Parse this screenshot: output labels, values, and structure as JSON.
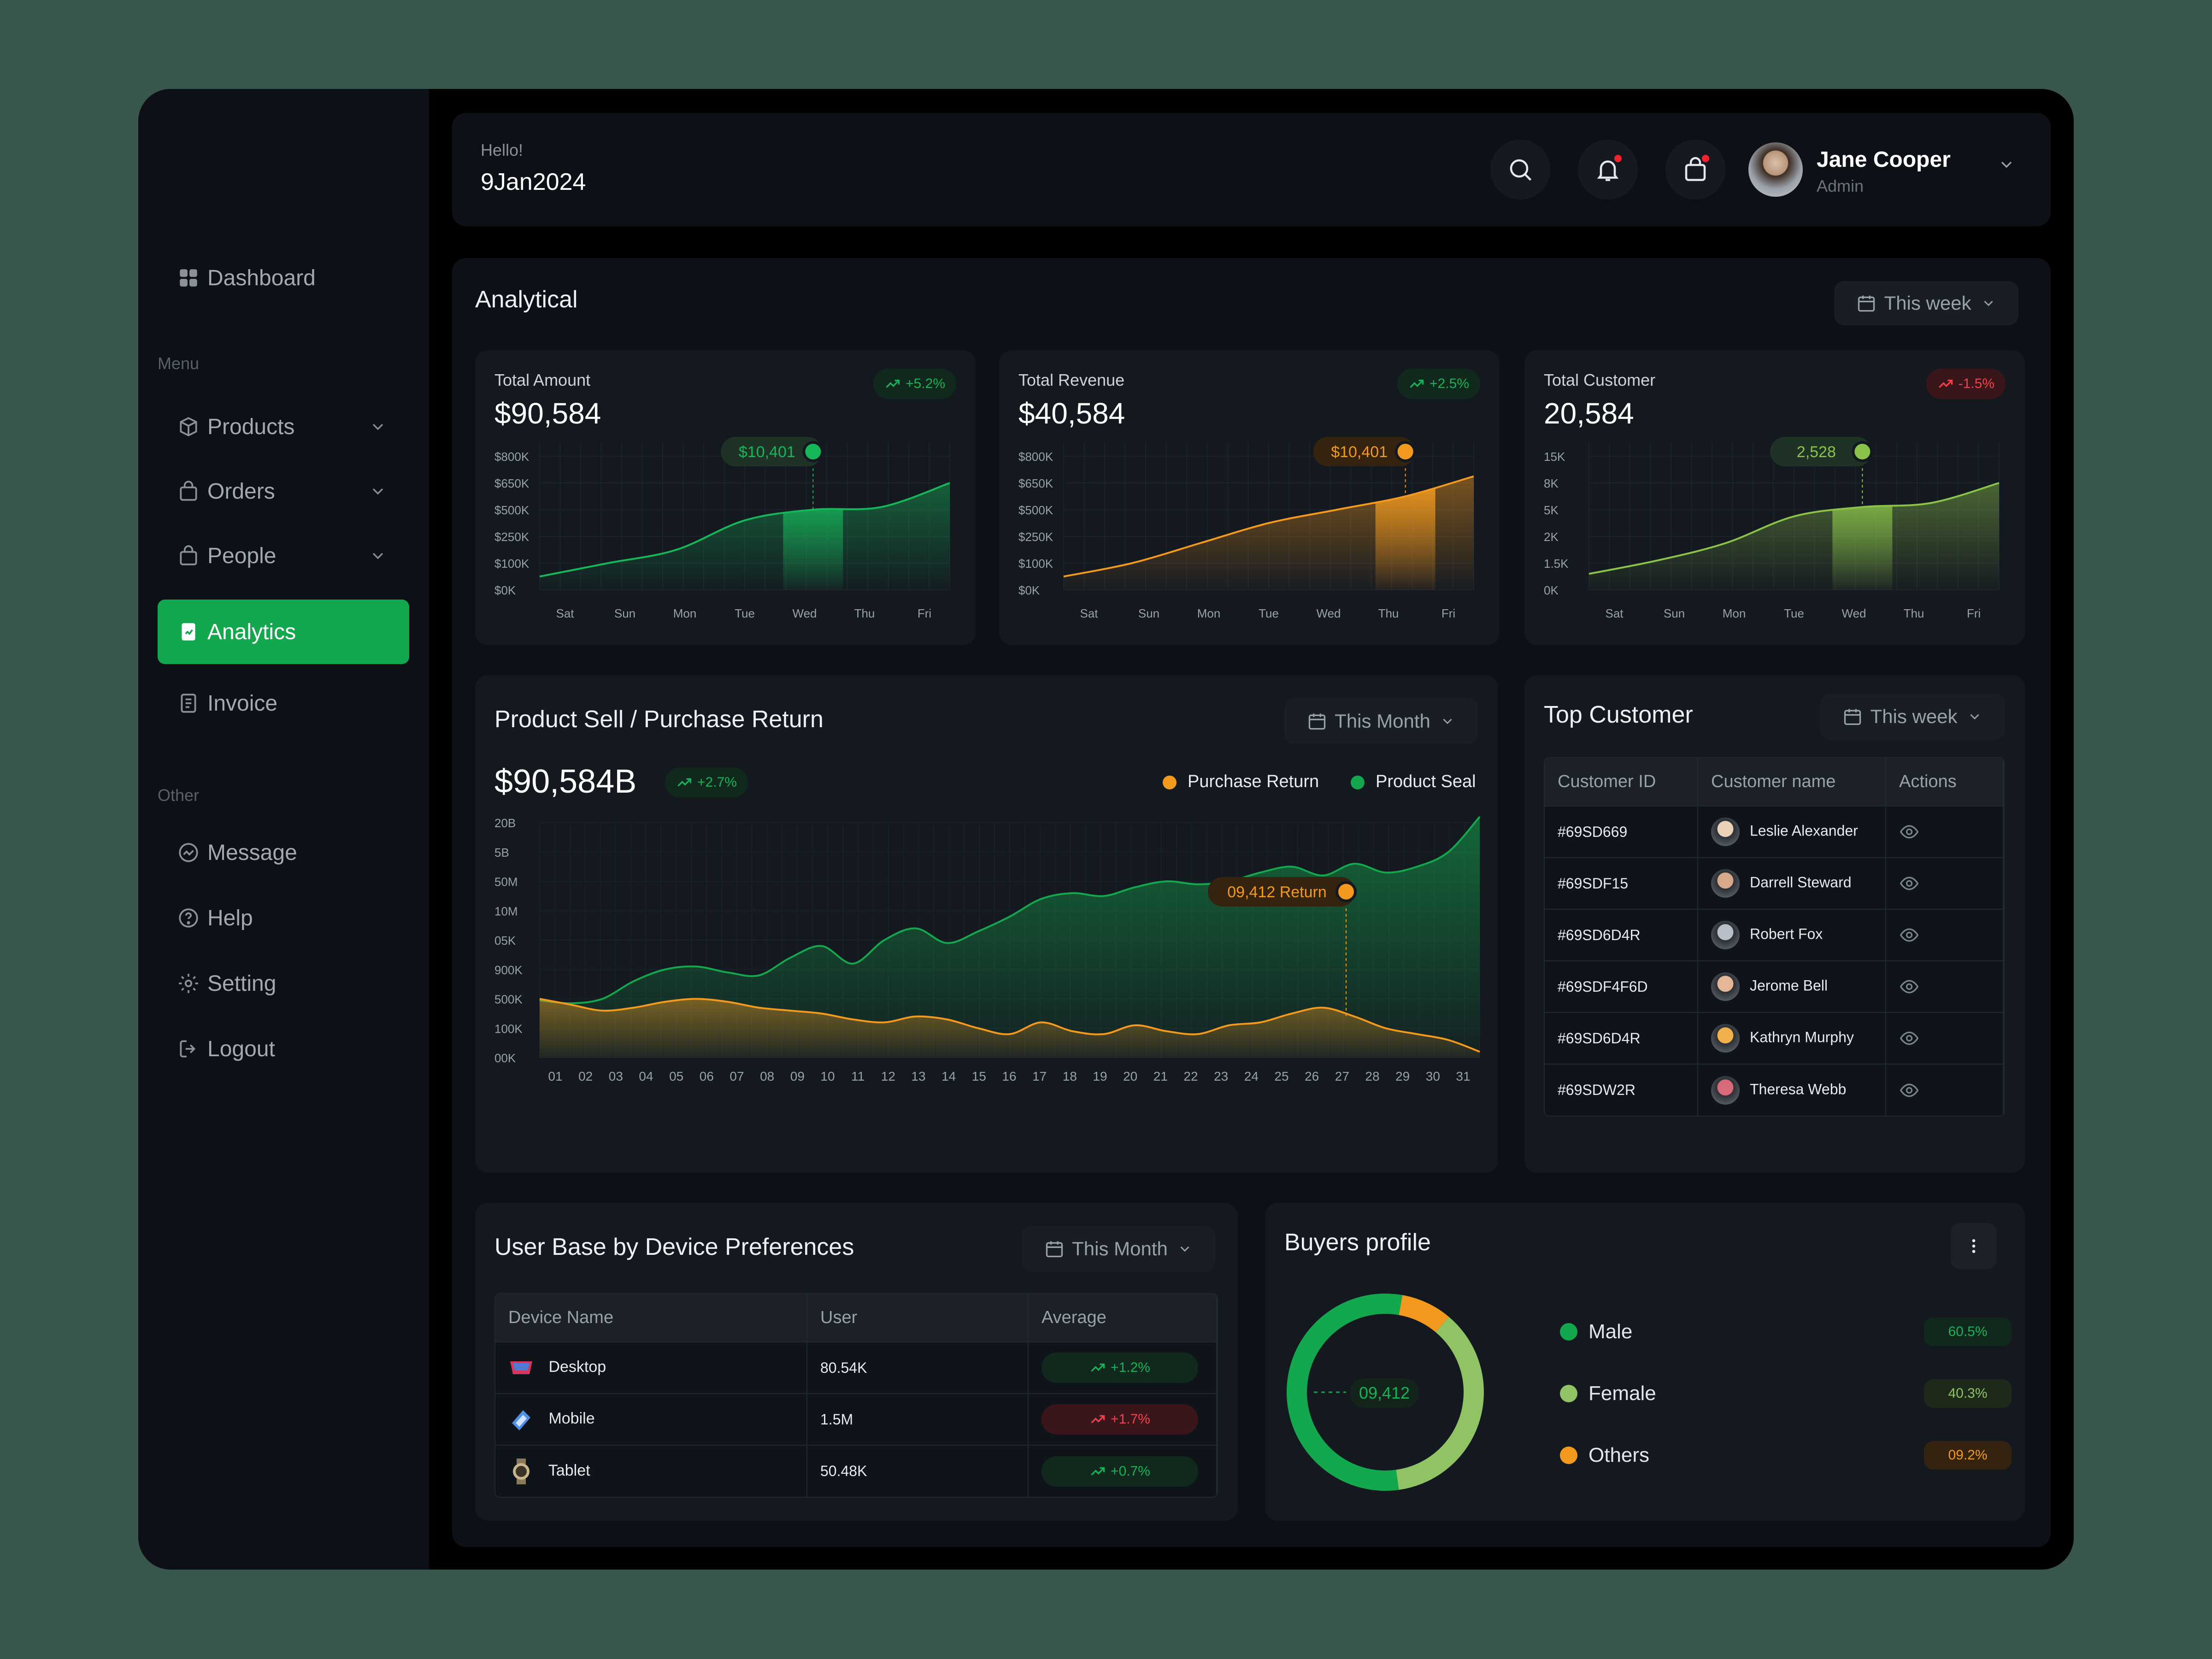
{
  "sidebar": {
    "dashboard": "Dashboard",
    "menu_label": "Menu",
    "items": [
      {
        "label": "Products",
        "icon": "box-icon"
      },
      {
        "label": "Orders",
        "icon": "bag-icon"
      },
      {
        "label": "People",
        "icon": "people-icon"
      },
      {
        "label": "Analytics",
        "icon": "analytics-icon",
        "active": true
      },
      {
        "label": "Invoice",
        "icon": "invoice-icon"
      }
    ],
    "other_label": "Other",
    "other_items": [
      {
        "label": "Message",
        "icon": "message-icon"
      },
      {
        "label": "Help",
        "icon": "help-icon"
      },
      {
        "label": "Setting",
        "icon": "gear-icon"
      },
      {
        "label": "Logout",
        "icon": "logout-icon"
      }
    ]
  },
  "header": {
    "greeting": "Hello!",
    "date": "9Jan2024",
    "user_name": "Jane Cooper",
    "user_role": "Admin"
  },
  "analytical": {
    "title": "Analytical",
    "period": "This week",
    "cards": [
      {
        "title": "Total Amount",
        "value": "$90,584",
        "badge": "+5.2%",
        "trend": "up",
        "color": "#16b65a",
        "yticks": [
          "$800K",
          "$650K",
          "$500K",
          "$250K",
          "$100K",
          "$0K"
        ],
        "xticks": [
          "Sat",
          "Sun",
          "Mon",
          "Tue",
          "Wed",
          "Thu",
          "Fri"
        ],
        "series": [
          0.1,
          0.2,
          0.3,
          0.52,
          0.6,
          0.62,
          0.8
        ],
        "highlight_index": 4,
        "tooltip": "$10,401"
      },
      {
        "title": "Total Revenue",
        "value": "$40,584",
        "badge": "+2.5%",
        "trend": "up",
        "color": "#f39a1e",
        "yticks": [
          "$800K",
          "$650K",
          "$500K",
          "$250K",
          "$100K",
          "$0K"
        ],
        "xticks": [
          "Sat",
          "Sun",
          "Mon",
          "Tue",
          "Wed",
          "Thu",
          "Fri"
        ],
        "series": [
          0.1,
          0.2,
          0.35,
          0.5,
          0.6,
          0.7,
          0.85
        ],
        "highlight_index": 5,
        "tooltip": "$10,401"
      },
      {
        "title": "Total Customer",
        "value": "20,584",
        "badge": "-1.5%",
        "trend": "down",
        "color": "#8bc34a",
        "yticks": [
          "15K",
          "8K",
          "5K",
          "2K",
          "1.5K",
          "0K"
        ],
        "xticks": [
          "Sat",
          "Sun",
          "Mon",
          "Tue",
          "Wed",
          "Thu",
          "Fri"
        ],
        "series": [
          0.12,
          0.22,
          0.35,
          0.55,
          0.62,
          0.65,
          0.8
        ],
        "highlight_index": 4,
        "tooltip": "2,528"
      }
    ]
  },
  "product_sell": {
    "title": "Product Sell / Purchase Return",
    "period": "This Month",
    "value": "$90,584B",
    "badge": "+2.7%",
    "legend_return": "Purchase Return",
    "legend_sell": "Product Seal",
    "tooltip": "09,412 Return",
    "yticks": [
      "20B",
      "5B",
      "50M",
      "10M",
      "05K",
      "900K",
      "500K",
      "100K",
      "00K"
    ],
    "xticks": [
      "01",
      "02",
      "03",
      "04",
      "05",
      "06",
      "07",
      "08",
      "09",
      "10",
      "11",
      "12",
      "13",
      "14",
      "15",
      "16",
      "17",
      "18",
      "19",
      "20",
      "21",
      "22",
      "23",
      "24",
      "25",
      "26",
      "27",
      "28",
      "29",
      "30",
      "31"
    ],
    "sell": [
      1.95,
      1.85,
      2.0,
      2.6,
      3.0,
      3.1,
      2.9,
      2.8,
      3.4,
      3.8,
      3.2,
      4.0,
      4.4,
      3.9,
      4.3,
      4.8,
      5.4,
      5.6,
      5.5,
      5.8,
      6.0,
      5.9,
      6.0,
      6.3,
      6.5,
      6.2,
      6.6,
      6.3,
      6.5,
      7.0,
      8.2
    ],
    "ret": [
      2.0,
      1.8,
      1.6,
      1.7,
      1.9,
      2.0,
      1.9,
      1.7,
      1.6,
      1.5,
      1.3,
      1.2,
      1.4,
      1.3,
      1.0,
      0.8,
      1.2,
      0.9,
      0.8,
      1.1,
      0.9,
      0.8,
      1.1,
      1.2,
      1.5,
      1.7,
      1.4,
      1.0,
      0.8,
      0.6,
      0.2
    ]
  },
  "top_customer": {
    "title": "Top Customer",
    "period": "This week",
    "columns": [
      "Customer ID",
      "Customer name",
      "Actions"
    ],
    "rows": [
      {
        "id": "#69SD669",
        "name": "Leslie Alexander"
      },
      {
        "id": "#69SDF15",
        "name": "Darrell Steward"
      },
      {
        "id": "#69SD6D4R",
        "name": "Robert Fox"
      },
      {
        "id": "#69SDF4F6D",
        "name": "Jerome Bell"
      },
      {
        "id": "#69SD6D4R",
        "name": "Kathryn Murphy"
      },
      {
        "id": "#69SDW2R",
        "name": "Theresa Webb"
      }
    ]
  },
  "device": {
    "title": "User Base by Device Preferences",
    "period": "This Month",
    "columns": [
      "Device Name",
      "User",
      "Average"
    ],
    "rows": [
      {
        "name": "Desktop",
        "user": "80.54K",
        "avg": "+1.2%",
        "trend": "up"
      },
      {
        "name": "Mobile",
        "user": "1.5M",
        "avg": "+1.7%",
        "trend": "down"
      },
      {
        "name": "Tablet",
        "user": "50.48K",
        "avg": "+0.7%",
        "trend": "up"
      }
    ]
  },
  "buyers": {
    "title": "Buyers profile",
    "center": "09,412",
    "segments": [
      {
        "label": "Male",
        "pct": "60.5%",
        "value": 60.5,
        "color": "#13a84d"
      },
      {
        "label": "Female",
        "pct": "40.3%",
        "value": 40.3,
        "color": "#8fc363"
      },
      {
        "label": "Others",
        "pct": "09.2%",
        "value": 9.2,
        "color": "#f39a1e"
      }
    ]
  }
}
